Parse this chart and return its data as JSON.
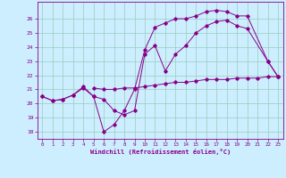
{
  "bg_color": "#cceeff",
  "line_color": "#880088",
  "grid_color": "#99ccbb",
  "xlabel": "Windchill (Refroidissement éolien,°C)",
  "ylim": [
    17.5,
    27.2
  ],
  "xlim": [
    -0.5,
    23.5
  ],
  "yticks": [
    18,
    19,
    20,
    21,
    22,
    23,
    24,
    25,
    26
  ],
  "xticks": [
    0,
    1,
    2,
    3,
    4,
    5,
    6,
    7,
    8,
    9,
    10,
    11,
    12,
    13,
    14,
    15,
    16,
    17,
    18,
    19,
    20,
    21,
    22,
    23
  ],
  "line1_x": [
    0,
    1,
    2,
    3,
    4,
    5,
    6,
    7,
    8,
    9,
    10,
    11,
    12,
    13,
    14,
    15,
    16,
    17,
    18,
    19,
    20,
    22,
    23
  ],
  "line1_y": [
    20.5,
    20.2,
    20.3,
    20.6,
    21.2,
    20.5,
    18.0,
    18.5,
    19.5,
    21.0,
    23.8,
    25.4,
    25.7,
    26.0,
    26.0,
    26.2,
    26.5,
    26.6,
    26.5,
    26.2,
    26.2,
    23.0,
    21.9
  ],
  "line2_x": [
    0,
    1,
    2,
    3,
    4,
    5,
    6,
    7,
    8,
    9,
    10,
    11,
    12,
    13,
    14,
    15,
    16,
    17,
    18,
    19,
    20,
    22,
    23
  ],
  "line2_y": [
    20.5,
    20.2,
    20.3,
    20.6,
    21.1,
    20.5,
    20.3,
    19.5,
    19.2,
    19.5,
    23.5,
    24.1,
    22.3,
    23.5,
    24.1,
    25.0,
    25.5,
    25.8,
    25.9,
    25.5,
    25.3,
    23.0,
    21.9
  ],
  "line3_x": [
    5,
    6,
    7,
    8,
    9,
    10,
    11,
    12,
    13,
    14,
    15,
    16,
    17,
    18,
    19,
    20,
    21,
    22,
    23
  ],
  "line3_y": [
    21.1,
    21.0,
    21.0,
    21.1,
    21.1,
    21.2,
    21.3,
    21.4,
    21.5,
    21.5,
    21.6,
    21.7,
    21.7,
    21.7,
    21.8,
    21.8,
    21.8,
    21.9,
    21.9
  ]
}
